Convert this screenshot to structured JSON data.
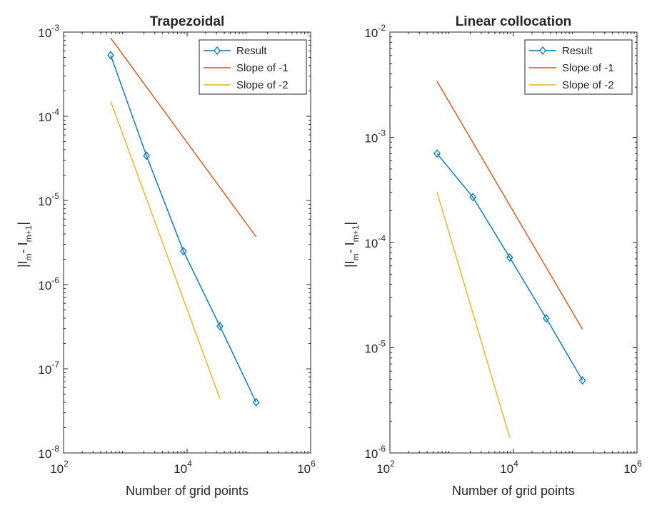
{
  "chart_data": [
    {
      "type": "line",
      "title": "Trapezoidal",
      "xlabel": "Number of grid points",
      "ylabel": "|I_m - I_{m+1}|",
      "xscale": "log",
      "yscale": "log",
      "xlim": [
        100,
        1000000
      ],
      "ylim": [
        1e-08,
        0.001
      ],
      "xticks": [
        {
          "base": "10",
          "exp": "2",
          "value": 100
        },
        {
          "base": "10",
          "exp": "4",
          "value": 10000
        },
        {
          "base": "10",
          "exp": "6",
          "value": 1000000
        }
      ],
      "yticks": [
        {
          "base": "10",
          "exp": "-3",
          "value": 0.001
        },
        {
          "base": "10",
          "exp": "-4",
          "value": 0.0001
        },
        {
          "base": "10",
          "exp": "-5",
          "value": 1e-05
        },
        {
          "base": "10",
          "exp": "-6",
          "value": 1e-06
        },
        {
          "base": "10",
          "exp": "-7",
          "value": 1e-07
        },
        {
          "base": "10",
          "exp": "-8",
          "value": 1e-08
        }
      ],
      "grid": false,
      "legend_position": "top-right",
      "series": [
        {
          "name": "Result",
          "color": "#0072BD",
          "marker": "diamond",
          "x": [
            580,
            2200,
            8700,
            34000,
            131000
          ],
          "y": [
            0.00053,
            3.4e-05,
            2.5e-06,
            3.2e-07,
            4e-08
          ]
        },
        {
          "name": "Slope of -1",
          "color": "#D95319",
          "marker": "none",
          "x": [
            580,
            131000
          ],
          "y": [
            0.00085,
            3.7e-06
          ]
        },
        {
          "name": "Slope of -2",
          "color": "#EDB120",
          "marker": "none",
          "x": [
            580,
            34000
          ],
          "y": [
            0.00015,
            4.4e-08
          ]
        }
      ]
    },
    {
      "type": "line",
      "title": "Linear collocation",
      "xlabel": "Number of grid points",
      "ylabel": "|I_m - I_{m+1}|",
      "xscale": "log",
      "yscale": "log",
      "xlim": [
        100,
        1000000
      ],
      "ylim": [
        1e-06,
        0.01
      ],
      "xticks": [
        {
          "base": "10",
          "exp": "2",
          "value": 100
        },
        {
          "base": "10",
          "exp": "4",
          "value": 10000
        },
        {
          "base": "10",
          "exp": "6",
          "value": 1000000
        }
      ],
      "yticks": [
        {
          "base": "10",
          "exp": "-2",
          "value": 0.01
        },
        {
          "base": "10",
          "exp": "-3",
          "value": 0.001
        },
        {
          "base": "10",
          "exp": "-4",
          "value": 0.0001
        },
        {
          "base": "10",
          "exp": "-5",
          "value": 1e-05
        },
        {
          "base": "10",
          "exp": "-6",
          "value": 1e-06
        }
      ],
      "grid": false,
      "legend_position": "top-right",
      "series": [
        {
          "name": "Result",
          "color": "#0072BD",
          "marker": "diamond",
          "x": [
            580,
            2200,
            8700,
            34000,
            131000
          ],
          "y": [
            0.0007,
            0.00027,
            7.2e-05,
            1.9e-05,
            4.9e-06
          ]
        },
        {
          "name": "Slope of -1",
          "color": "#D95319",
          "marker": "none",
          "x": [
            580,
            131000
          ],
          "y": [
            0.0034,
            1.5e-05
          ]
        },
        {
          "name": "Slope of -2",
          "color": "#EDB120",
          "marker": "none",
          "x": [
            580,
            8700
          ],
          "y": [
            0.0003,
            1.4e-06
          ]
        }
      ]
    }
  ]
}
